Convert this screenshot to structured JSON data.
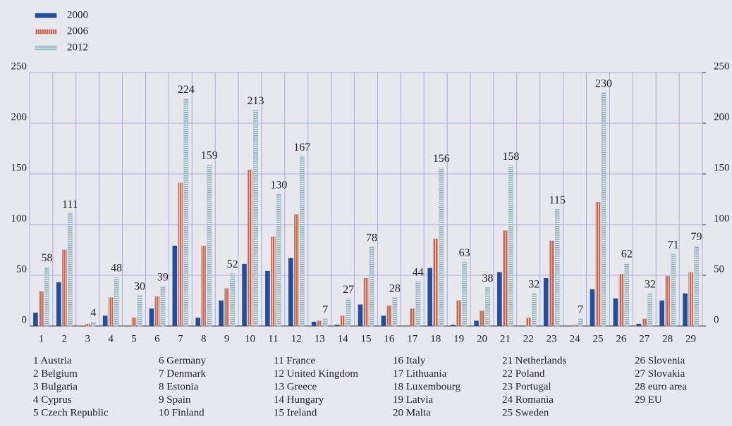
{
  "chart_data": {
    "type": "bar",
    "categories": [
      "1",
      "2",
      "3",
      "4",
      "5",
      "6",
      "7",
      "8",
      "9",
      "10",
      "11",
      "12",
      "13",
      "14",
      "15",
      "16",
      "17",
      "18",
      "19",
      "20",
      "21",
      "22",
      "23",
      "24",
      "25",
      "26",
      "27",
      "28",
      "29"
    ],
    "series": [
      {
        "name": "2000",
        "color": "#1f4f9e",
        "values": [
          13,
          43,
          0,
          10,
          0,
          17,
          79,
          8,
          25,
          61,
          54,
          67,
          4,
          1,
          21,
          10,
          0,
          57,
          1,
          5,
          53,
          0,
          47,
          0,
          36,
          27,
          2,
          25,
          32
        ]
      },
      {
        "name": "2006",
        "color": "#d2806c",
        "values": [
          34,
          75,
          2,
          28,
          8,
          29,
          141,
          79,
          37,
          154,
          88,
          110,
          5,
          10,
          47,
          20,
          17,
          86,
          25,
          15,
          94,
          8,
          84,
          1,
          122,
          51,
          7,
          49,
          53
        ]
      },
      {
        "name": "2012",
        "color": "#a4bfcb",
        "show_labels": true,
        "values": [
          58,
          111,
          4,
          48,
          30,
          39,
          224,
          159,
          52,
          213,
          130,
          167,
          7,
          27,
          78,
          28,
          44,
          156,
          63,
          38,
          158,
          32,
          115,
          7,
          230,
          62,
          32,
          71,
          79
        ]
      }
    ],
    "ylim": [
      0,
      250
    ],
    "yticks": [
      0,
      50,
      100,
      150,
      200,
      250
    ],
    "y2lim": [
      0,
      250
    ],
    "y2ticks": [
      0,
      50,
      100,
      150,
      200,
      250
    ],
    "grid": true,
    "legend": "top-left",
    "key": [
      "1 Austria",
      "2 Belgium",
      "3 Bulgaria",
      "4 Cyprus",
      "5 Czech Republic",
      "6 Germany",
      "7 Denmark",
      "8 Estonia",
      "9 Spain",
      "10 Finland",
      "11 France",
      "12 United Kingdom",
      "13 Greece",
      "14 Hungary",
      "15 Ireland",
      "16 Italy",
      "17 Lithuania",
      "18 Luxembourg",
      "19 Latvia",
      "20 Malta",
      "21 Netherlands",
      "22 Poland",
      "23 Portugal",
      "24 Romania",
      "25 Sweden",
      "26 Slovenia",
      "27 Slovakia",
      "28 euro area",
      "29 EU"
    ]
  }
}
